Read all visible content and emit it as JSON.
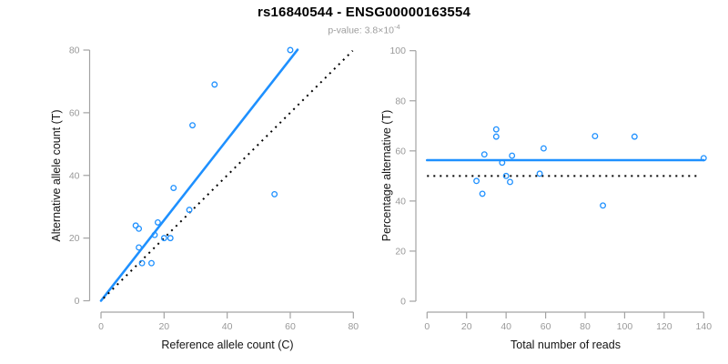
{
  "header": {
    "title": "rs16840544 - ENSG00000163554",
    "pvalue_label": "p-value: ",
    "pvalue_base": "3.8×10",
    "pvalue_exponent": "-4"
  },
  "colors": {
    "accent_blue": "#1e90ff",
    "line_black": "#000000",
    "axis_line": "#a3a3a3",
    "tick_label": "#999999",
    "axis_title": "#141414",
    "subtitle_gray": "#9d9d9d",
    "background": "#ffffff"
  },
  "chart_data": [
    {
      "type": "scatter",
      "name": "allele-count-scatter",
      "xlabel": "Reference allele count (C)",
      "ylabel": "Alternative allele count (T)",
      "xlim": [
        0,
        80
      ],
      "ylim": [
        0,
        80
      ],
      "xticks": [
        0,
        20,
        40,
        60,
        80
      ],
      "yticks": [
        0,
        20,
        40,
        60,
        80
      ],
      "grid": false,
      "legend": "none",
      "marker": "open-circle",
      "points": [
        [
          60,
          80
        ],
        [
          36,
          69
        ],
        [
          29,
          56
        ],
        [
          23,
          36
        ],
        [
          55,
          34
        ],
        [
          28,
          29
        ],
        [
          18,
          25
        ],
        [
          11,
          24
        ],
        [
          12,
          23
        ],
        [
          17,
          21
        ],
        [
          20,
          20
        ],
        [
          22,
          20
        ],
        [
          12,
          17
        ],
        [
          13,
          12
        ],
        [
          16,
          12
        ]
      ],
      "lines": [
        {
          "name": "regression-line",
          "style": "solid",
          "color": "blue",
          "x1": 0,
          "y1": 0,
          "x2": 62.3,
          "y2": 80.1
        },
        {
          "name": "identity-line",
          "style": "dotted",
          "color": "black",
          "x1": 0.8,
          "y1": 0.8,
          "x2": 79.8,
          "y2": 79.8
        }
      ]
    },
    {
      "type": "scatter",
      "name": "percentage-vs-reads-scatter",
      "xlabel": "Total number of reads",
      "ylabel": "Percentage alternative (T)",
      "xlim": [
        0,
        140
      ],
      "ylim": [
        0,
        100
      ],
      "xticks": [
        0,
        20,
        40,
        60,
        80,
        100,
        120,
        140
      ],
      "yticks": [
        0,
        20,
        40,
        60,
        80,
        100
      ],
      "grid": false,
      "legend": "none",
      "marker": "open-circle",
      "points": [
        [
          140,
          57.1
        ],
        [
          105,
          65.7
        ],
        [
          85,
          65.9
        ],
        [
          59,
          61.0
        ],
        [
          89,
          38.2
        ],
        [
          57,
          50.9
        ],
        [
          43,
          58.1
        ],
        [
          35,
          68.6
        ],
        [
          35,
          65.7
        ],
        [
          38,
          55.3
        ],
        [
          40,
          50.0
        ],
        [
          42,
          47.6
        ],
        [
          29,
          58.6
        ],
        [
          25,
          48.0
        ],
        [
          28,
          42.9
        ]
      ],
      "lines": [
        {
          "name": "mean-percentage-line",
          "style": "solid",
          "color": "blue",
          "x1": 0,
          "y1": 56.3,
          "x2": 140,
          "y2": 56.3
        },
        {
          "name": "expected-50-line",
          "style": "dotted",
          "color": "black",
          "x1": 0,
          "y1": 50,
          "x2": 137,
          "y2": 50
        }
      ]
    }
  ]
}
